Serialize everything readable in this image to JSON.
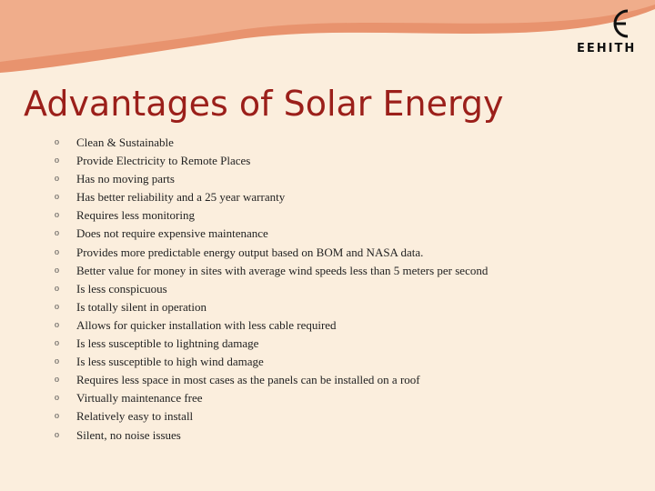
{
  "header": {
    "title": "Advantages of Solar Energy",
    "logo": "EEHITH"
  },
  "bullets": [
    "Clean  & Sustainable",
    "Provide Electricity to Remote Places",
    "Has no moving parts",
    "Has better reliability and a 25 year warranty",
    "Requires less monitoring",
    "Does not require expensive maintenance",
    "Provides more predictable energy output based on BOM and NASA data.",
    "Better value for money in sites with average wind speeds less than 5 meters per second",
    "Is less conspicuous",
    "Is totally silent in operation",
    "Allows for quicker installation with less cable required",
    "Is less susceptible to lightning damage",
    "Is less susceptible to high wind damage",
    "Requires less space in most cases as the panels can be installed on a roof",
    "Virtually maintenance free",
    "Relatively easy to install",
    "Silent, no noise issues"
  ]
}
